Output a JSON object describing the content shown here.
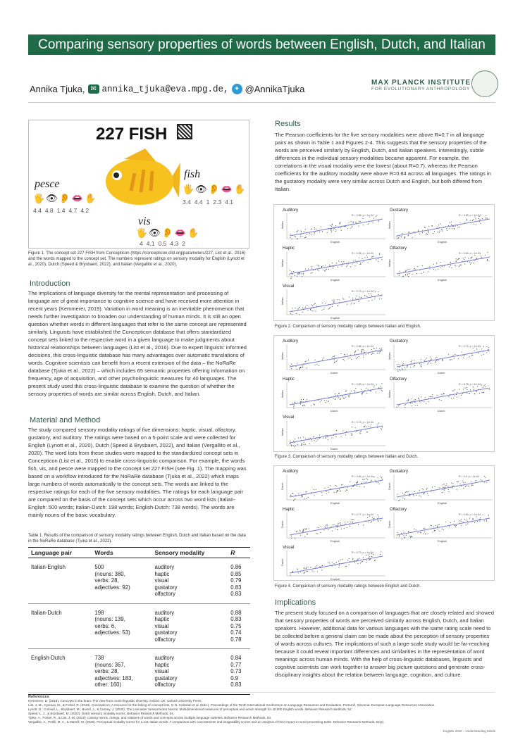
{
  "title": "Comparing sensory properties of words between English, Dutch, and Italian",
  "author": {
    "name": "Annika Tjuka,",
    "email": "annika_tjuka@eva.mpg.de,",
    "twitter": "@AnnikaTjuka"
  },
  "institute": {
    "line1": "MAX PLANCK INSTITUTE",
    "line2": "FOR EVOLUTIONARY ANTHROPOLOGY"
  },
  "fig1": {
    "heading": "227 FISH",
    "languages": [
      {
        "word": "pesce",
        "values": [
          "4.4",
          "4.8",
          "1.4",
          "4.7",
          "4.2"
        ]
      },
      {
        "word": "fish",
        "values": [
          "3.4",
          "4.4",
          "1",
          "2.3",
          "4.1"
        ]
      },
      {
        "word": "vis",
        "values": [
          "4",
          "4.1",
          "0.5",
          "4.3",
          "2"
        ]
      }
    ],
    "caption": "Figure 1. The concept set 227 FISH from Concepticon (https://concepticon.clld.org/parameters/227, List et al., 2016) and the words mapped to the concept set. The numbers represent ratings on sensory modality for English (Lynott et al., 2020), Dutch (Speed & Brysbaert, 2022), and Italian (Vergallito et al., 2020)."
  },
  "intro": {
    "heading": "Introduction",
    "text": "The implications of language diversity for the mental representation and processing of language are of great importance to cognitive science and have received more attention in recent years (Kemmerer, 2019). Variation in word meaning is an inevitable phenomenon that needs further investigation to broaden our understanding of human minds. It is still an open question whether words in different languages that refer to the same concept are represented similarly. Linguists have established the Concepticon database that offers standardized concept sets linked to the respective word in a given language to make judgments about historical relationships between languages (List et al., 2016). Due to expert linguists' informed decisions, this cross-linguistic database has many advantages over automatic translations of words. Cognitive scientists can benefit from a recent extension of the data – the NoRaRe database (Tjuka et al., 2022) – which includes 65 semantic properties offering information on frequency, age of acquisition, and other psycholinguistic measures for 40 languages. The present study used this cross-linguistic database to examine the question of whether the sensory properties of words are similar across English, Dutch, and Italian."
  },
  "method": {
    "heading": "Material and Method",
    "text": "The study compared sensory modality ratings of five dimensions: haptic, visual, olfactory, gustatory, and auditory. The ratings were based on a 5-point scale and were collected for English (Lynott et al., 2020), Dutch (Speed & Brysbaert, 2022), and Italian (Vergallito et al., 2020). The word lists from these studies were mapped to the standardized concept sets in Concepticon (List et al., 2016) to enable cross-linguistic comparison. For example, the words fish, vis, and pesce were mapped to the concept set 227 FISH (see Fig. 1). The mapping was based on a workflow introduced for the NoRaRe database (Tjuka et al., 2022) which maps large numbers of words automatically to the concept sets. The words are linked to the respective ratings for each of the five sensory modalities. The ratings for each language pair are compared on the basis of the concept sets which occur across two word lists (Italian-English: 500 words; Italian-Dutch: 198 words; English-Dutch: 738 words). The words are mainly nouns of the basic vocabulary."
  },
  "table": {
    "caption": "Table 1. Results of the comparison of sensory modality ratings between English, Dutch and Italian based on the data in the NoRaRe database (Tjuka et al., 2022).",
    "headers": [
      "Language pair",
      "Words",
      "Sensory modality",
      "R"
    ],
    "rows": [
      {
        "pair": "Italian-English",
        "words": "500\n(nouns: 380,\nverbs: 28,\nadjectives: 92)",
        "modalities": "auditory\nhaptic\nvisual\ngustatory\nolfactory",
        "r": "0.86\n0.85\n0.79\n0.83\n0.83"
      },
      {
        "pair": "Italian-Dutch",
        "words": "198\n(nouns: 139,\nverbs: 6,\nadjectives: 53)",
        "modalities": "auditory\nhaptic\nvisual\ngustatory\nolfactory",
        "r": "0.88\n0.83\n0.75\n0.74\n0.78"
      },
      {
        "pair": "English-Dutch",
        "words": "738\n(nouns: 367,\nverbs: 28,\nadjectives: 183,\nother: 160)",
        "modalities": "auditory\nhaptic\nvisual\ngustatory\nolfactory",
        "r": "0.84\n0.77\n0.73\n0.9\n0.83"
      }
    ]
  },
  "results": {
    "heading": "Results",
    "text": "The Pearson coefficients for the five sensory modalities were above R=0.7 in all language pairs as shown in Table 1 and Figures 2-4. This suggests that the sensory properties of the words are perceived similarly by English, Dutch, and Italian speakers. Interestingly, subtle differences in the individual sensory modalities became apparent. For example, the correlations in the visual modality were the lowest (about R=0.7), whereas the Pearson coefficients for the auditory modality were above R=0.84 across all languages. The ratings in the gustatory modality were very similar across Dutch and English, but both differed from Italian."
  },
  "figures": [
    {
      "caption": "Figure 2. Comparison of sensory modality ratings between Italian and English.",
      "xlabel": "English",
      "ylabel": "Italian",
      "panels": [
        {
          "name": "Auditory",
          "stat": "R = 0.86, p < 1e-04"
        },
        {
          "name": "Gustatory",
          "stat": "R = 0.83, p < 1e-04"
        },
        {
          "name": "Haptic",
          "stat": "R = 0.85, p < 1e-04"
        },
        {
          "name": "Olfactory",
          "stat": "R = 0.83, p < 1e-04"
        },
        {
          "name": "Visual",
          "stat": "R = 0.79, p < 1e-04"
        }
      ]
    },
    {
      "caption": "Figure 3. Comparison of sensory modality ratings between Italian and Dutch.",
      "xlabel": "Dutch",
      "ylabel": "Italian",
      "panels": [
        {
          "name": "Auditory",
          "stat": "R = 0.88, p < 1e-04"
        },
        {
          "name": "Gustatory",
          "stat": "R = 0.74, p < 1e-04"
        },
        {
          "name": "Haptic",
          "stat": "R = 0.83, p < 1e-04"
        },
        {
          "name": "Olfactory",
          "stat": "R = 0.78, p < 1e-04"
        },
        {
          "name": "Visual",
          "stat": "R = 0.75, p < 1e-04"
        }
      ]
    },
    {
      "caption": "Figure 4. Comparison of sensory modality ratings between English and Dutch.",
      "xlabel": "English",
      "ylabel": "Dutch",
      "panels": [
        {
          "name": "Auditory",
          "stat": "R = 0.84, p < 1e-04"
        },
        {
          "name": "Gustatory",
          "stat": "R = 0.9, p < 1e-04"
        },
        {
          "name": "Haptic",
          "stat": "R = 0.77, p < 1e-04"
        },
        {
          "name": "Olfactory",
          "stat": "R = 0.83, p < 1e-04"
        },
        {
          "name": "Visual",
          "stat": "R = 0.73, p < 1e-04"
        }
      ]
    }
  ],
  "implications": {
    "heading": "Implications",
    "text": "The present study focused on a comparison of languages that are closely related and showed that sensory properties of words are perceived similarly across English, Dutch, and Italian speakers. However, additional data for various languages with the same rating scale need to be collected before a general claim can be made about the perception of sensory properties of words across cultures. The implications of such a large-scale study would be far-reaching because it could reveal important differences and similarities in the representation of word meanings across human minds. With the help of cross-linguistic databases, linguists and cognitive scientists can work together to answer big picture questions and generate cross-disciplinary insights about the relation between language, cognition, and culture."
  },
  "references": {
    "heading": "References",
    "items": [
      "Kemmerer, D. (2019). Concepts in the brain: The view from cross-linguistic diversity. Oxford, UK: Oxford University Press.",
      "List, J.-M., Cysouw, M., & Forkel, R. (2016). Concepticon: A resource for the linking of concept lists. In N. Calzolari et al. (Eds.), Proceedings of the Tenth International Conference on Language Resources and Evaluation. Portorož, Slovenia: European Language Resources Association.",
      "Lynott, D., Connell, L., Brysbaert, M., Brand, J., & Carney, J. (2020). The Lancaster Sensorimotor Norms: Multidimensional measures of perceptual and action strength for 40,000 English words. Behavior Research Methods, 52.",
      "Speed, L. J., & Brysbaert, M. (2022). Dutch sensory modality norms. Behavior Research Methods, 54.",
      "Tjuka, A., Forkel, R., & List, J.-M. (2022). Linking norms, ratings, and relations of words and concepts across multiple language varieties. Behavior Research Methods, 54.",
      "Vergallito, A., Petilli, M. A., & Marelli, M. (2020). Perceptual modality norms for 1,121 Italian words: A comparison with concreteness and imageability scores and an analysis of their impact in word processing tasks. Behavior Research Methods, 52(4)."
    ]
  },
  "footer": "KogWis 2022 – Understanding Minds",
  "colors": {
    "brand": "#1f6b47",
    "regression": "#7b7fd6",
    "points": "#333333"
  }
}
